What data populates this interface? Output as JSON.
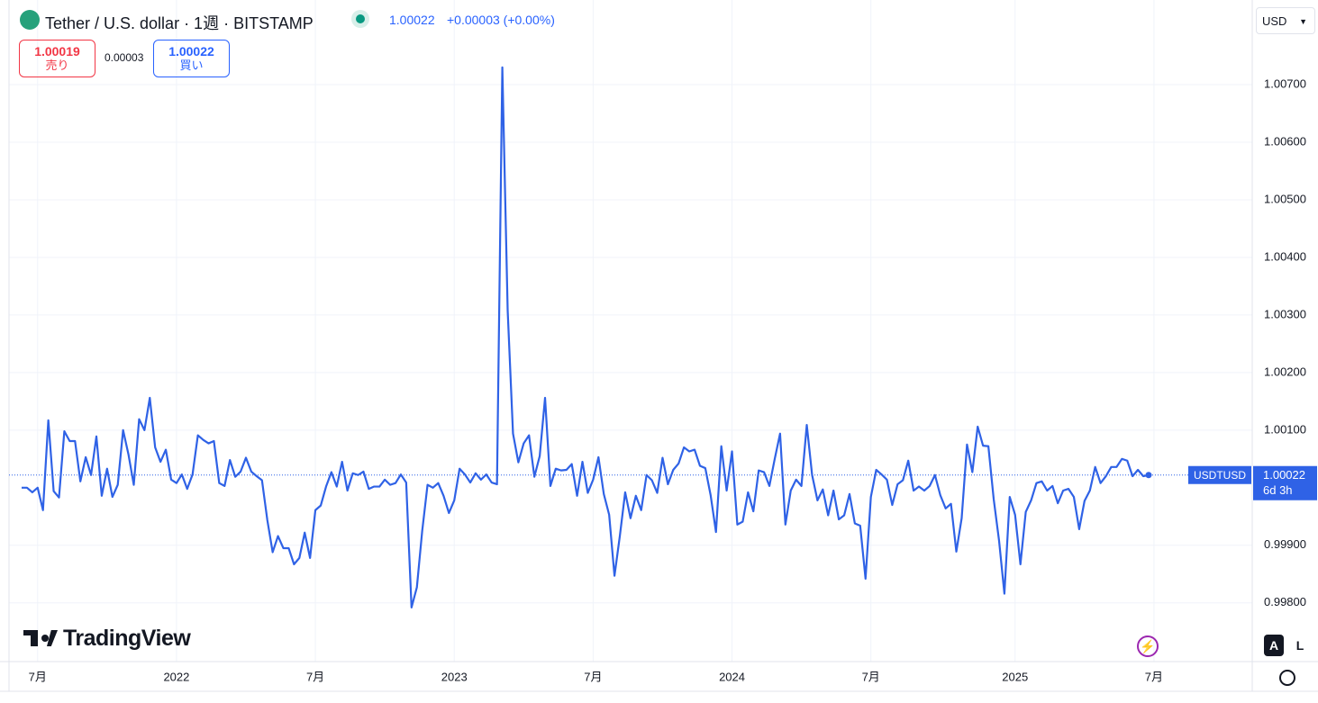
{
  "header": {
    "symbol": "Tether / U.S. dollar · 1週 · BITSTAMP",
    "last": "1.00022",
    "change": "+0.00003 (+0.00%)",
    "sell_price": "1.00019",
    "sell_label": "売り",
    "spread": "0.00003",
    "buy_price": "1.00022",
    "buy_label": "買い",
    "currency": "USD",
    "brand": "TradingView",
    "scale_buttons": [
      "A",
      "L"
    ]
  },
  "chart_data": {
    "type": "line",
    "series": [
      {
        "name": "USDTUSD",
        "color": "#2f62e6",
        "values": [
          1.0,
          1.0,
          0.99992,
          1.0,
          0.99961,
          1.00117,
          0.99994,
          0.99983,
          1.00098,
          1.00081,
          1.00081,
          1.00011,
          1.00053,
          1.00022,
          1.00089,
          0.99986,
          1.00033,
          0.99984,
          1.00005,
          1.001,
          1.00058,
          1.00005,
          1.00119,
          1.001,
          1.00156,
          1.0007,
          1.00045,
          1.00066,
          1.00014,
          1.00008,
          1.00023,
          0.99998,
          1.00023,
          1.00091,
          1.00083,
          1.00077,
          1.00081,
          1.00008,
          1.00003,
          1.00048,
          1.00019,
          1.00028,
          1.00052,
          1.00028,
          1.0002,
          1.00013,
          0.99944,
          0.99888,
          0.99916,
          0.99895,
          0.99895,
          0.99867,
          0.99878,
          0.99922,
          0.99878,
          0.99961,
          0.99969,
          1.00002,
          1.00027,
          1.00002,
          1.00045,
          0.99995,
          1.00025,
          1.00022,
          1.00028,
          0.99998,
          1.00002,
          1.00002,
          1.00014,
          1.00005,
          1.00008,
          1.00023,
          1.00009,
          0.99792,
          0.99827,
          0.99925,
          1.00005,
          1.0,
          1.00008,
          0.99986,
          0.99956,
          0.99978,
          1.00033,
          1.00023,
          1.00009,
          1.00025,
          1.00014,
          1.00023,
          1.00009,
          1.00006,
          1.0073,
          1.00308,
          1.00094,
          1.00044,
          1.00077,
          1.00091,
          1.00019,
          1.00055,
          1.00156,
          1.00003,
          1.00033,
          1.0003,
          1.00031,
          1.00041,
          0.99986,
          1.00045,
          0.99991,
          1.00014,
          1.00053,
          0.99989,
          0.99953,
          0.99847,
          0.99916,
          0.99992,
          0.99947,
          0.99986,
          0.99961,
          1.00022,
          1.00013,
          0.99991,
          1.00052,
          1.00006,
          1.00031,
          1.00042,
          1.0007,
          1.00063,
          1.00066,
          1.00038,
          1.00034,
          0.99987,
          0.99923,
          1.00072,
          0.99995,
          1.00063,
          0.99936,
          0.99941,
          0.99992,
          0.99959,
          1.0003,
          1.00027,
          1.00003,
          1.0005,
          1.00094,
          0.99936,
          0.99995,
          1.00014,
          1.00003,
          1.00109,
          1.00022,
          0.99978,
          0.99997,
          0.99952,
          0.99995,
          0.99945,
          0.99952,
          0.99989,
          0.99938,
          0.99934,
          0.99842,
          0.99984,
          1.00031,
          1.00023,
          1.00014,
          0.9997,
          1.00006,
          1.00013,
          1.00047,
          0.99995,
          1.00002,
          0.99995,
          1.00003,
          1.00022,
          0.99987,
          0.99964,
          0.99972,
          0.99889,
          0.99947,
          1.00075,
          1.00027,
          1.00106,
          1.00073,
          1.00072,
          0.9998,
          0.99908,
          0.99816,
          0.99984,
          0.99953,
          0.99867,
          0.99958,
          0.99978,
          1.00008,
          1.00011,
          0.99995,
          1.00003,
          0.99973,
          0.99995,
          0.99998,
          0.99984,
          0.99928,
          0.99977,
          0.99995,
          1.00036,
          1.00008,
          1.0002,
          1.00036,
          1.00036,
          1.0005,
          1.00047,
          1.0002,
          1.00031,
          1.0002,
          1.00022
        ]
      }
    ],
    "ylim": [
      0.99698,
      1.00847
    ],
    "yticks": [
      {
        "value": 0.998,
        "label": "0.99800"
      },
      {
        "value": 0.999,
        "label": "0.99900"
      },
      {
        "value": 1.001,
        "label": "1.00100"
      },
      {
        "value": 1.002,
        "label": "1.00200"
      },
      {
        "value": 1.003,
        "label": "1.00300"
      },
      {
        "value": 1.004,
        "label": "1.00400"
      },
      {
        "value": 1.005,
        "label": "1.00500"
      },
      {
        "value": 1.006,
        "label": "1.00600"
      },
      {
        "value": 1.007,
        "label": "1.00700"
      }
    ],
    "xlim": [
      -2.36,
      230.4
    ],
    "xticks": [
      {
        "value": 3,
        "label": "7月"
      },
      {
        "value": 29,
        "label": "2022"
      },
      {
        "value": 55,
        "label": "7月"
      },
      {
        "value": 81,
        "label": "2023"
      },
      {
        "value": 107,
        "label": "7月"
      },
      {
        "value": 133,
        "label": "2024"
      },
      {
        "value": 159,
        "label": "7月"
      },
      {
        "value": 186,
        "label": "2025"
      },
      {
        "value": 212,
        "label": "7月"
      }
    ],
    "grid": true,
    "countdown": "6d 3h"
  }
}
